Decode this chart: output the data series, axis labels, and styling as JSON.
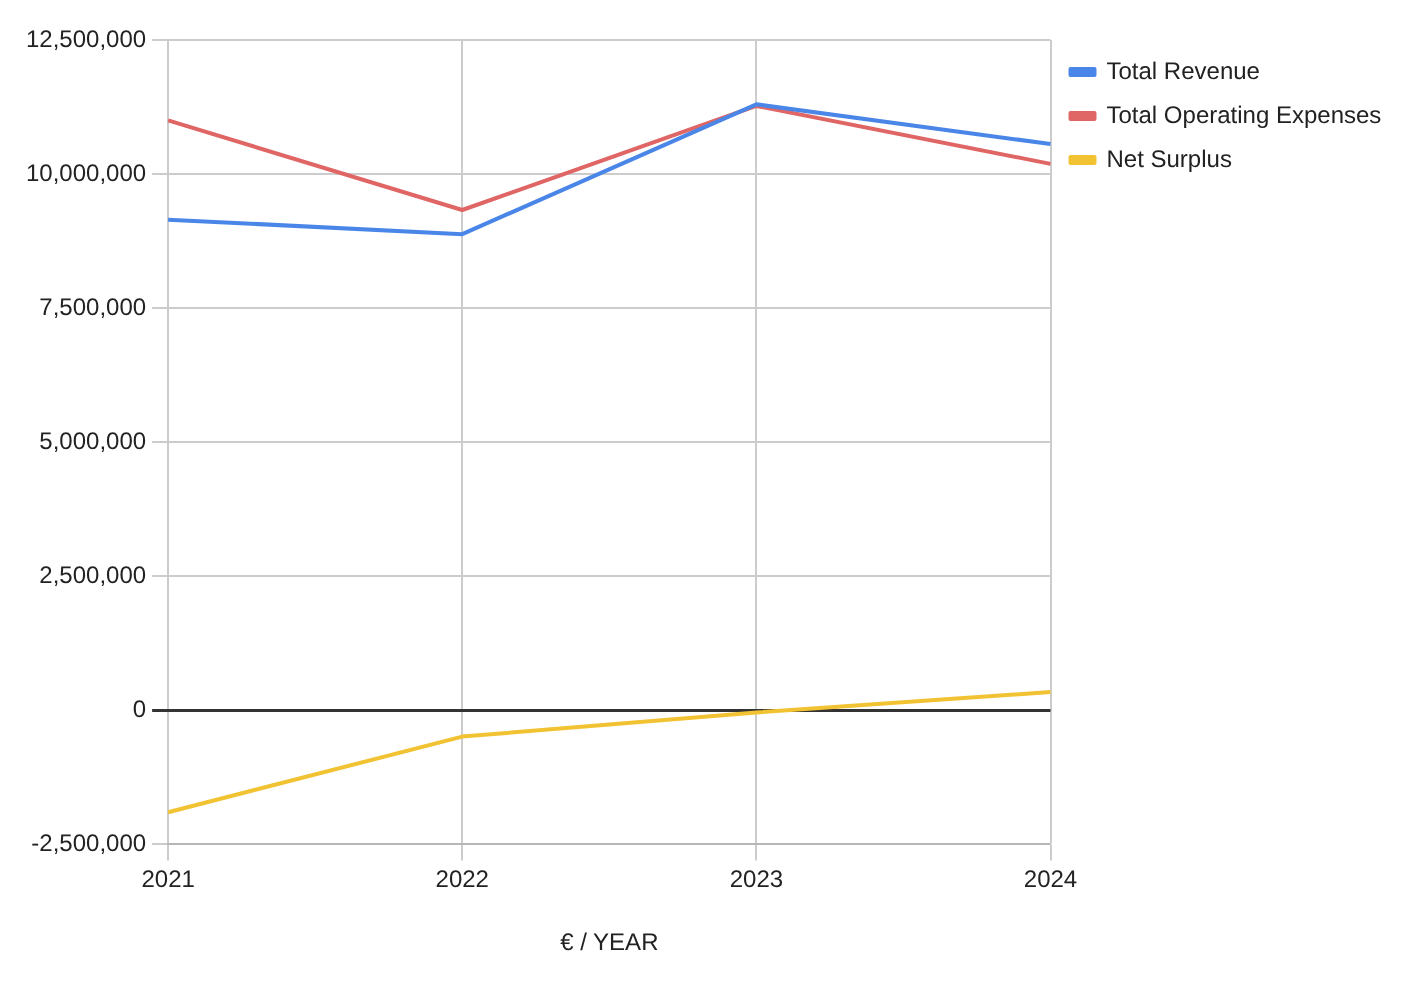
{
  "chart_data": {
    "type": "line",
    "xlabel": "€ / YEAR",
    "categories": [
      "2021",
      "2022",
      "2023",
      "2024"
    ],
    "series": [
      {
        "name": "Total Revenue",
        "color": "#4a86e8",
        "values": [
          9150000,
          8880000,
          11300000,
          10560000
        ]
      },
      {
        "name": "Total Operating Expenses",
        "color": "#e06666",
        "values": [
          11000000,
          9330000,
          11270000,
          10190000
        ]
      },
      {
        "name": "Net Surplus",
        "color": "#f1c232",
        "values": [
          -1900000,
          -490000,
          -40000,
          340000
        ]
      }
    ],
    "ylim": [
      -2500000,
      12500000
    ],
    "yticks": [
      {
        "value": -2500000,
        "label": "-2,500,000"
      },
      {
        "value": 0,
        "label": "0"
      },
      {
        "value": 2500000,
        "label": "2,500,000"
      },
      {
        "value": 5000000,
        "label": "5,000,000"
      },
      {
        "value": 7500000,
        "label": "7,500,000"
      },
      {
        "value": 10000000,
        "label": "10,000,000"
      },
      {
        "value": 12500000,
        "label": "12,500,000"
      }
    ],
    "grid": true,
    "legend": "top right",
    "marker": "none",
    "line_style": "solid"
  }
}
